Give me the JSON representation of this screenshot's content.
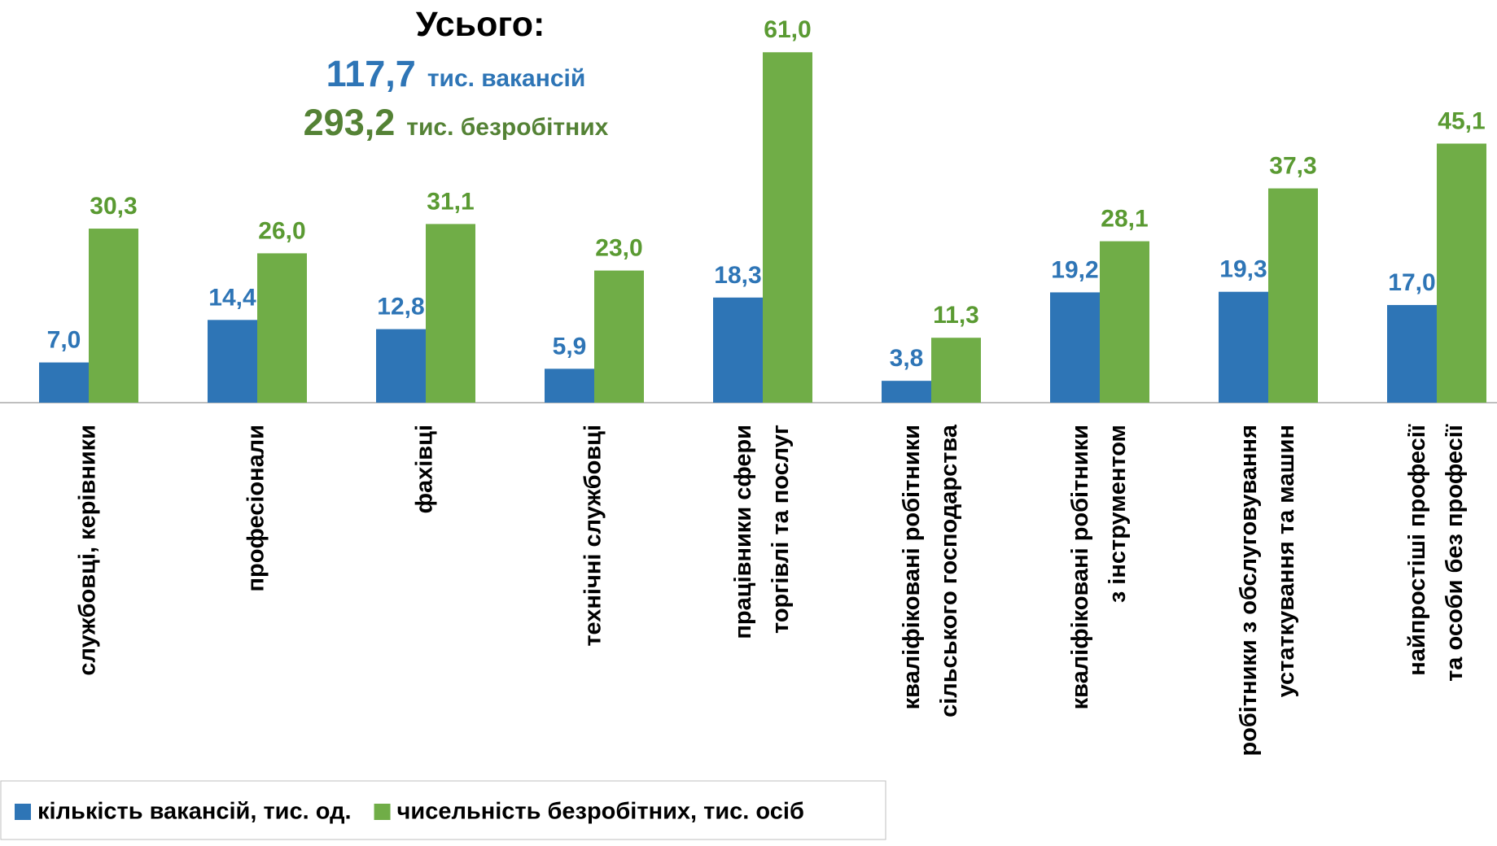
{
  "chart_data": {
    "type": "bar",
    "annotations": {
      "total": "Усього:",
      "vacancies_value": "117,7",
      "vacancies_text": "тис. вакансій",
      "unemployed_value": "293,2",
      "unemployed_text": "тис. безробітних"
    },
    "categories": [
      "службовці, керівники",
      "професіонали",
      "фахівці",
      "технічні службовці",
      "працівники сфери\nторгівлі та послуг",
      "кваліфіковані робітники\nсільського господарства",
      "кваліфіковані робітники\nз інструментом",
      "робітники з обслуговування\nустаткування та машин",
      "найпростіші професії\nта особи без професії"
    ],
    "series": [
      {
        "name": "кількість вакансій, тис. од.",
        "color": "#2e75b6",
        "values": [
          7.0,
          14.4,
          12.8,
          5.9,
          18.3,
          3.8,
          19.2,
          19.3,
          17.0
        ],
        "value_labels": [
          "7,0",
          "14,4",
          "12,8",
          "5,9",
          "18,3",
          "3,8",
          "19,2",
          "19,3",
          "17,0"
        ]
      },
      {
        "name": "чисельність безробітних, тис. осіб",
        "color": "#70ad47",
        "values": [
          30.3,
          26.0,
          31.1,
          23.0,
          61.0,
          11.3,
          28.1,
          37.3,
          45.1
        ],
        "value_labels": [
          "30,3",
          "26,0",
          "31,1",
          "23,0",
          "61,0",
          "11,3",
          "28,1",
          "37,3",
          "45,1"
        ]
      }
    ],
    "ylim": [
      0,
      65
    ],
    "legend": "bottom-left"
  }
}
